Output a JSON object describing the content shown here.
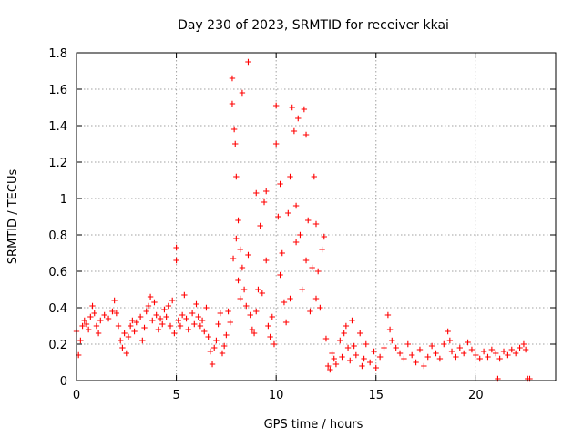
{
  "chart_data": {
    "type": "scatter",
    "title": "Day 230 of 2023, SRMTID for receiver kkai",
    "xlabel": "GPS time / hours",
    "ylabel": "SRMTID / TECUs",
    "xlim": [
      0,
      24
    ],
    "ylim": [
      0,
      1.8
    ],
    "x_ticks": [
      0,
      5,
      10,
      15,
      20
    ],
    "x_tick_labels": [
      "0",
      "5",
      "10",
      "15",
      "20"
    ],
    "y_ticks": [
      0,
      0.2,
      0.4,
      0.6,
      0.8,
      1.0,
      1.2,
      1.4,
      1.6,
      1.8
    ],
    "y_tick_labels": [
      "0",
      "0.2",
      "0.4",
      "0.6",
      "0.8",
      "1",
      "1.2",
      "1.4",
      "1.6",
      "1.8"
    ],
    "grid": true,
    "marker": "+",
    "color": "#ff0000",
    "series": [
      {
        "name": "SRMTID",
        "points": [
          [
            0.0,
            0.27
          ],
          [
            0.1,
            0.14
          ],
          [
            0.2,
            0.22
          ],
          [
            0.3,
            0.3
          ],
          [
            0.4,
            0.33
          ],
          [
            0.5,
            0.31
          ],
          [
            0.6,
            0.28
          ],
          [
            0.7,
            0.35
          ],
          [
            0.8,
            0.41
          ],
          [
            0.9,
            0.37
          ],
          [
            1.0,
            0.3
          ],
          [
            1.1,
            0.26
          ],
          [
            1.2,
            0.33
          ],
          [
            1.4,
            0.36
          ],
          [
            1.6,
            0.34
          ],
          [
            1.8,
            0.38
          ],
          [
            1.9,
            0.44
          ],
          [
            2.0,
            0.37
          ],
          [
            2.1,
            0.3
          ],
          [
            2.2,
            0.22
          ],
          [
            2.3,
            0.18
          ],
          [
            2.4,
            0.26
          ],
          [
            2.5,
            0.15
          ],
          [
            2.6,
            0.24
          ],
          [
            2.7,
            0.3
          ],
          [
            2.8,
            0.33
          ],
          [
            2.9,
            0.27
          ],
          [
            3.0,
            0.32
          ],
          [
            3.2,
            0.35
          ],
          [
            3.3,
            0.22
          ],
          [
            3.4,
            0.29
          ],
          [
            3.5,
            0.38
          ],
          [
            3.6,
            0.41
          ],
          [
            3.7,
            0.46
          ],
          [
            3.8,
            0.33
          ],
          [
            3.9,
            0.43
          ],
          [
            4.0,
            0.36
          ],
          [
            4.1,
            0.28
          ],
          [
            4.2,
            0.34
          ],
          [
            4.3,
            0.31
          ],
          [
            4.4,
            0.39
          ],
          [
            4.5,
            0.35
          ],
          [
            4.6,
            0.41
          ],
          [
            4.7,
            0.3
          ],
          [
            4.8,
            0.44
          ],
          [
            4.9,
            0.26
          ],
          [
            5.0,
            0.73
          ],
          [
            5.0,
            0.66
          ],
          [
            5.1,
            0.33
          ],
          [
            5.2,
            0.3
          ],
          [
            5.3,
            0.36
          ],
          [
            5.4,
            0.47
          ],
          [
            5.5,
            0.34
          ],
          [
            5.6,
            0.28
          ],
          [
            5.8,
            0.37
          ],
          [
            5.9,
            0.31
          ],
          [
            6.0,
            0.42
          ],
          [
            6.1,
            0.35
          ],
          [
            6.2,
            0.3
          ],
          [
            6.3,
            0.33
          ],
          [
            6.4,
            0.27
          ],
          [
            6.5,
            0.4
          ],
          [
            6.6,
            0.24
          ],
          [
            6.7,
            0.16
          ],
          [
            6.8,
            0.09
          ],
          [
            6.9,
            0.18
          ],
          [
            7.0,
            0.22
          ],
          [
            7.1,
            0.31
          ],
          [
            7.2,
            0.37
          ],
          [
            7.3,
            0.15
          ],
          [
            7.4,
            0.19
          ],
          [
            7.5,
            0.25
          ],
          [
            7.6,
            0.38
          ],
          [
            7.7,
            0.32
          ],
          [
            7.8,
            1.66
          ],
          [
            7.8,
            1.52
          ],
          [
            7.85,
            0.67
          ],
          [
            7.9,
            1.38
          ],
          [
            7.95,
            1.3
          ],
          [
            8.0,
            1.12
          ],
          [
            8.0,
            0.78
          ],
          [
            8.1,
            0.88
          ],
          [
            8.1,
            0.55
          ],
          [
            8.2,
            0.72
          ],
          [
            8.2,
            0.45
          ],
          [
            8.3,
            1.58
          ],
          [
            8.3,
            0.62
          ],
          [
            8.4,
            0.5
          ],
          [
            8.5,
            0.41
          ],
          [
            8.6,
            1.75
          ],
          [
            8.6,
            0.69
          ],
          [
            8.7,
            0.36
          ],
          [
            8.8,
            0.28
          ],
          [
            8.9,
            0.26
          ],
          [
            9.0,
            1.03
          ],
          [
            9.0,
            0.38
          ],
          [
            9.1,
            0.5
          ],
          [
            9.2,
            0.85
          ],
          [
            9.3,
            0.48
          ],
          [
            9.4,
            0.98
          ],
          [
            9.5,
            1.04
          ],
          [
            9.5,
            0.66
          ],
          [
            9.6,
            0.3
          ],
          [
            9.7,
            0.24
          ],
          [
            9.8,
            0.35
          ],
          [
            9.9,
            0.2
          ],
          [
            10.0,
            1.51
          ],
          [
            10.0,
            1.3
          ],
          [
            10.1,
            0.9
          ],
          [
            10.2,
            1.08
          ],
          [
            10.2,
            0.58
          ],
          [
            10.3,
            0.7
          ],
          [
            10.4,
            0.43
          ],
          [
            10.5,
            0.32
          ],
          [
            10.6,
            0.92
          ],
          [
            10.7,
            1.12
          ],
          [
            10.7,
            0.45
          ],
          [
            10.8,
            1.5
          ],
          [
            10.9,
            1.37
          ],
          [
            11.0,
            0.76
          ],
          [
            11.0,
            0.96
          ],
          [
            11.1,
            1.44
          ],
          [
            11.2,
            0.8
          ],
          [
            11.3,
            0.5
          ],
          [
            11.4,
            1.49
          ],
          [
            11.5,
            1.35
          ],
          [
            11.5,
            0.66
          ],
          [
            11.6,
            0.88
          ],
          [
            11.7,
            0.38
          ],
          [
            11.8,
            0.62
          ],
          [
            11.9,
            1.12
          ],
          [
            12.0,
            0.86
          ],
          [
            12.0,
            0.45
          ],
          [
            12.1,
            0.6
          ],
          [
            12.2,
            0.4
          ],
          [
            12.3,
            0.72
          ],
          [
            12.4,
            0.79
          ],
          [
            12.5,
            0.23
          ],
          [
            12.6,
            0.08
          ],
          [
            12.7,
            0.06
          ],
          [
            12.8,
            0.15
          ],
          [
            12.9,
            0.12
          ],
          [
            13.0,
            0.09
          ],
          [
            13.2,
            0.22
          ],
          [
            13.3,
            0.13
          ],
          [
            13.4,
            0.26
          ],
          [
            13.5,
            0.3
          ],
          [
            13.6,
            0.18
          ],
          [
            13.7,
            0.11
          ],
          [
            13.8,
            0.33
          ],
          [
            13.9,
            0.19
          ],
          [
            14.0,
            0.14
          ],
          [
            14.2,
            0.26
          ],
          [
            14.3,
            0.08
          ],
          [
            14.4,
            0.12
          ],
          [
            14.5,
            0.2
          ],
          [
            14.7,
            0.1
          ],
          [
            14.9,
            0.16
          ],
          [
            15.0,
            0.07
          ],
          [
            15.2,
            0.13
          ],
          [
            15.4,
            0.18
          ],
          [
            15.6,
            0.36
          ],
          [
            15.7,
            0.28
          ],
          [
            15.8,
            0.22
          ],
          [
            16.0,
            0.18
          ],
          [
            16.2,
            0.15
          ],
          [
            16.4,
            0.12
          ],
          [
            16.6,
            0.2
          ],
          [
            16.8,
            0.14
          ],
          [
            17.0,
            0.1
          ],
          [
            17.2,
            0.17
          ],
          [
            17.4,
            0.08
          ],
          [
            17.6,
            0.13
          ],
          [
            17.8,
            0.19
          ],
          [
            18.0,
            0.15
          ],
          [
            18.2,
            0.12
          ],
          [
            18.4,
            0.2
          ],
          [
            18.6,
            0.27
          ],
          [
            18.7,
            0.22
          ],
          [
            18.8,
            0.16
          ],
          [
            19.0,
            0.13
          ],
          [
            19.2,
            0.18
          ],
          [
            19.4,
            0.15
          ],
          [
            19.6,
            0.21
          ],
          [
            19.8,
            0.17
          ],
          [
            20.0,
            0.14
          ],
          [
            20.2,
            0.12
          ],
          [
            20.4,
            0.16
          ],
          [
            20.6,
            0.13
          ],
          [
            20.8,
            0.17
          ],
          [
            21.0,
            0.15
          ],
          [
            21.1,
            0.01
          ],
          [
            21.2,
            0.12
          ],
          [
            21.4,
            0.16
          ],
          [
            21.6,
            0.14
          ],
          [
            21.8,
            0.17
          ],
          [
            22.0,
            0.15
          ],
          [
            22.2,
            0.18
          ],
          [
            22.4,
            0.2
          ],
          [
            22.5,
            0.17
          ],
          [
            22.6,
            0.01
          ],
          [
            22.7,
            0.01
          ]
        ]
      }
    ]
  }
}
